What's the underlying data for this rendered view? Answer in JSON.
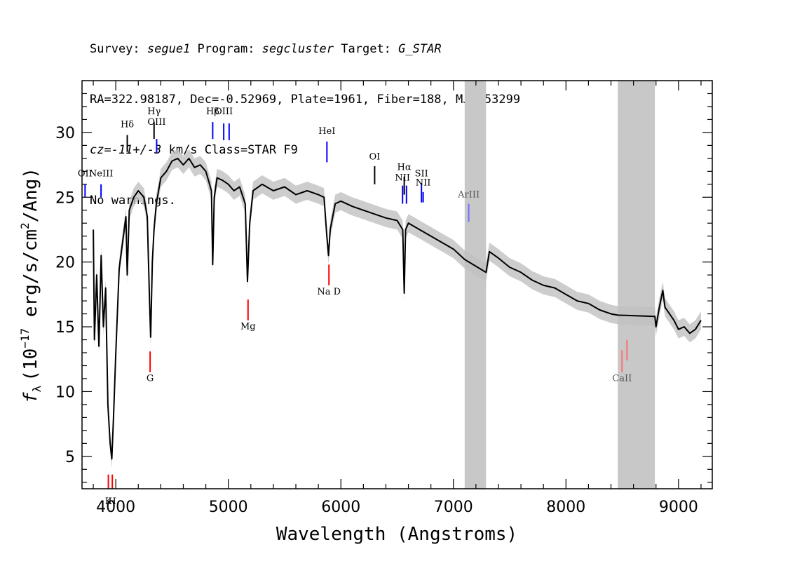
{
  "header": {
    "line1": {
      "survey_label": "Survey: ",
      "survey": "segue1",
      "program_label": " Program: ",
      "program": "segcluster",
      "target_label": " Target: ",
      "target": "G_STAR"
    },
    "line2": "RA=322.98187, Dec=-0.52969, Plate=1961, Fiber=188, MJD=53299",
    "line3": {
      "cz": "cz=-11+/-3",
      "rest": " km/s Class=STAR F9"
    },
    "line4": "No warnings."
  },
  "chart_data": {
    "type": "line",
    "xlabel": "Wavelength (Angstroms)",
    "ylabel": "f_λ (10^-17 erg/s/cm^2/Ang)",
    "ylabel_parts": {
      "f": "f",
      "lambda": "λ",
      "unit_pre": "(10",
      "exp1": "−17",
      "unit_mid": " erg/s/cm",
      "exp2": "2",
      "unit_post": "/Ang)"
    },
    "xlim": [
      3700,
      9300
    ],
    "ylim": [
      2.5,
      34
    ],
    "x_ticks": [
      4000,
      5000,
      6000,
      7000,
      8000,
      9000
    ],
    "x_tick_labels": [
      "4000",
      "5000",
      "6000",
      "7000",
      "8000",
      "9000"
    ],
    "y_ticks": [
      5,
      10,
      15,
      20,
      25,
      30
    ],
    "y_tick_labels": [
      "5",
      "10",
      "15",
      "20",
      "25",
      "30"
    ],
    "masked_regions": [
      [
        7100,
        7290
      ],
      [
        8460,
        8790
      ]
    ],
    "spectrum": {
      "name": "flux",
      "color": "#000000",
      "error_color": "#c0c0c0",
      "points": [
        [
          3800,
          22.5
        ],
        [
          3810,
          14.0
        ],
        [
          3830,
          19.0
        ],
        [
          3850,
          13.5
        ],
        [
          3870,
          20.5
        ],
        [
          3890,
          15.0
        ],
        [
          3910,
          18.0
        ],
        [
          3930,
          9.0
        ],
        [
          3950,
          6.0
        ],
        [
          3965,
          4.8
        ],
        [
          3980,
          8.0
        ],
        [
          4000,
          13.0
        ],
        [
          4030,
          19.5
        ],
        [
          4060,
          21.5
        ],
        [
          4090,
          23.5
        ],
        [
          4102,
          19.0
        ],
        [
          4120,
          24.0
        ],
        [
          4160,
          25.0
        ],
        [
          4200,
          25.5
        ],
        [
          4250,
          25.0
        ],
        [
          4280,
          23.5
        ],
        [
          4300,
          17.0
        ],
        [
          4310,
          14.2
        ],
        [
          4325,
          20.0
        ],
        [
          4340,
          22.5
        ],
        [
          4360,
          24.5
        ],
        [
          4400,
          26.5
        ],
        [
          4450,
          27.0
        ],
        [
          4500,
          27.8
        ],
        [
          4550,
          28.0
        ],
        [
          4600,
          27.5
        ],
        [
          4650,
          28.0
        ],
        [
          4700,
          27.3
        ],
        [
          4750,
          27.5
        ],
        [
          4800,
          27.0
        ],
        [
          4850,
          25.5
        ],
        [
          4861,
          19.8
        ],
        [
          4875,
          25.0
        ],
        [
          4900,
          26.5
        ],
        [
          4950,
          26.3
        ],
        [
          5000,
          26.0
        ],
        [
          5050,
          25.5
        ],
        [
          5100,
          25.8
        ],
        [
          5150,
          24.5
        ],
        [
          5170,
          18.5
        ],
        [
          5190,
          23.0
        ],
        [
          5220,
          25.5
        ],
        [
          5300,
          26.0
        ],
        [
          5400,
          25.5
        ],
        [
          5500,
          25.8
        ],
        [
          5600,
          25.2
        ],
        [
          5700,
          25.5
        ],
        [
          5800,
          25.2
        ],
        [
          5850,
          25.0
        ],
        [
          5875,
          22.0
        ],
        [
          5890,
          20.5
        ],
        [
          5905,
          22.5
        ],
        [
          5950,
          24.5
        ],
        [
          6000,
          24.7
        ],
        [
          6100,
          24.3
        ],
        [
          6200,
          24.0
        ],
        [
          6300,
          23.7
        ],
        [
          6400,
          23.4
        ],
        [
          6500,
          23.2
        ],
        [
          6550,
          22.5
        ],
        [
          6563,
          17.6
        ],
        [
          6575,
          22.5
        ],
        [
          6600,
          23.0
        ],
        [
          6700,
          22.5
        ],
        [
          6800,
          22.0
        ],
        [
          6900,
          21.5
        ],
        [
          7000,
          21.0
        ],
        [
          7100,
          20.2
        ],
        [
          7290,
          19.2
        ],
        [
          7320,
          20.8
        ],
        [
          7400,
          20.3
        ],
        [
          7500,
          19.6
        ],
        [
          7600,
          19.2
        ],
        [
          7700,
          18.6
        ],
        [
          7800,
          18.2
        ],
        [
          7900,
          18.0
        ],
        [
          8000,
          17.5
        ],
        [
          8100,
          17.0
        ],
        [
          8200,
          16.8
        ],
        [
          8300,
          16.3
        ],
        [
          8400,
          16.0
        ],
        [
          8460,
          15.9
        ],
        [
          8790,
          15.8
        ],
        [
          8800,
          15.0
        ],
        [
          8830,
          16.5
        ],
        [
          8860,
          17.8
        ],
        [
          8880,
          16.5
        ],
        [
          8920,
          16.0
        ],
        [
          8960,
          15.5
        ],
        [
          9000,
          14.8
        ],
        [
          9050,
          15.0
        ],
        [
          9100,
          14.5
        ],
        [
          9150,
          14.8
        ],
        [
          9200,
          15.5
        ]
      ]
    },
    "emission_lines": [
      {
        "label": "OII",
        "x": 3727,
        "top": 26.0,
        "bottom": 25.0,
        "color": "#0000ff",
        "label_y": 26.6
      },
      {
        "label": "NeIII",
        "x": 3869,
        "top": 26.0,
        "bottom": 25.0,
        "color": "#0000ff",
        "label_y": 26.6
      },
      {
        "label": "Hδ",
        "x": 4102,
        "top": 29.8,
        "bottom": 28.5,
        "color": "#000000",
        "label_y": 30.4
      },
      {
        "label": "Hγ",
        "x": 4340,
        "top": 30.8,
        "bottom": 29.5,
        "color": "#000000",
        "label_y": 31.4
      },
      {
        "label": "OIII",
        "x": 4363,
        "top": 29.5,
        "bottom": 28.4,
        "color": "#0000ff",
        "label_y": 30.6
      },
      {
        "label": "Hβ",
        "x": 4861,
        "top": 30.8,
        "bottom": 29.5,
        "color": "#0000ff",
        "label_y": 31.4
      },
      {
        "label": "OIII",
        "x": 4959,
        "top": 30.7,
        "bottom": 29.4,
        "color": "#0000ff",
        "label_y": 31.4
      },
      {
        "label": "",
        "x": 5007,
        "top": 30.7,
        "bottom": 29.4,
        "color": "#0000ff",
        "label_y": 0
      },
      {
        "label": "HeI",
        "x": 5876,
        "top": 29.3,
        "bottom": 27.7,
        "color": "#0000ff",
        "label_y": 29.9
      },
      {
        "label": "OI",
        "x": 6300,
        "top": 27.4,
        "bottom": 26.0,
        "color": "#000000",
        "label_y": 27.9
      },
      {
        "label": "NII",
        "x": 6548,
        "top": 25.9,
        "bottom": 24.5,
        "color": "#0000ff",
        "label_y": 26.3
      },
      {
        "label": "Hα",
        "x": 6563,
        "top": 26.6,
        "bottom": 25.2,
        "color": "#000000",
        "label_y": 27.1
      },
      {
        "label": "",
        "x": 6583,
        "top": 25.9,
        "bottom": 24.5,
        "color": "#0000ff",
        "label_y": 0
      },
      {
        "label": "SII",
        "x": 6716,
        "top": 26.1,
        "bottom": 24.6,
        "color": "#0000ff",
        "label_y": 26.6
      },
      {
        "label": "NII",
        "x": 6731,
        "top": 25.4,
        "bottom": 24.6,
        "color": "#0000ff",
        "label_y": 25.9
      },
      {
        "label": "ArIII",
        "x": 7136,
        "top": 24.5,
        "bottom": 23.1,
        "color": "#6f6fff",
        "label_y": 25.0
      }
    ],
    "absorption_lines": [
      {
        "label": "K",
        "x": 3934,
        "top": 3.6,
        "bottom": 2.0,
        "color": "#ff0000",
        "label_y": 1.3
      },
      {
        "label": "H",
        "x": 3969,
        "top": 3.6,
        "bottom": 2.0,
        "color": "#ff0000",
        "label_y": 1.3
      },
      {
        "label": "G",
        "x": 4305,
        "top": 13.1,
        "bottom": 11.5,
        "color": "#ff0000",
        "label_y": 10.8
      },
      {
        "label": "Mg",
        "x": 5175,
        "top": 17.1,
        "bottom": 15.5,
        "color": "#ff0000",
        "label_y": 14.8
      },
      {
        "label": "Na D",
        "x": 5894,
        "top": 19.8,
        "bottom": 18.2,
        "color": "#ff0000",
        "label_y": 17.5
      },
      {
        "label": "CaII",
        "x": 8498,
        "top": 13.2,
        "bottom": 11.5,
        "color": "#ff6f6f",
        "label_y": 10.8
      },
      {
        "label": "",
        "x": 8542,
        "top": 14.0,
        "bottom": 12.4,
        "color": "#ff6f6f",
        "label_y": 0
      }
    ]
  }
}
